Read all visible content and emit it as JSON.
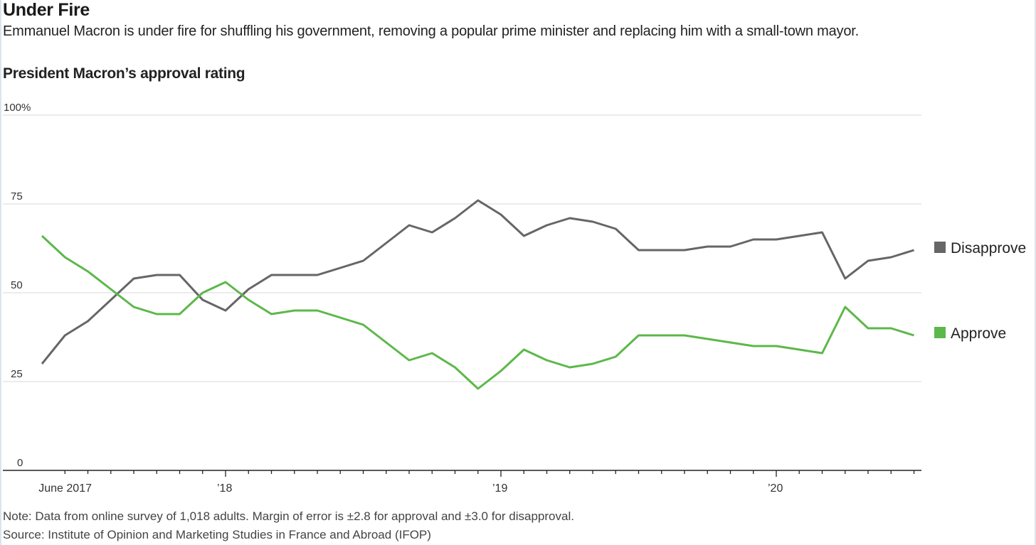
{
  "header": {
    "title": "Under Fire",
    "subtitle": "Emmanuel Macron is under fire for shuffling his government, removing a popular prime minister and replacing him with a small-town mayor.",
    "chart_title": "President Macron’s approval rating"
  },
  "footer": {
    "note": "Note: Data from online survey of 1,018 adults. Margin of error is ±2.8 for approval and ±3.0 for disapproval.",
    "source": "Source: Institute of Opinion and Marketing Studies in France and Abroad (IFOP)"
  },
  "chart_data": {
    "type": "line",
    "title": "President Macron’s approval rating",
    "xlabel": "",
    "ylabel": "",
    "ylim": [
      0,
      100
    ],
    "yticks": [
      {
        "value": 0,
        "label": "0"
      },
      {
        "value": 25,
        "label": "25"
      },
      {
        "value": 50,
        "label": "50"
      },
      {
        "value": 75,
        "label": "75"
      },
      {
        "value": 100,
        "label": "100%"
      }
    ],
    "grid": true,
    "x_start": "2017-05",
    "x_months_index_range": [
      0,
      39
    ],
    "xtick_labels": [
      {
        "month_index": 1,
        "label": "June 2017"
      },
      {
        "month_index": 8,
        "label": "’18"
      },
      {
        "month_index": 20,
        "label": "’19"
      },
      {
        "month_index": 32,
        "label": "’20"
      }
    ],
    "minor_tick_month_indices": [
      1,
      2,
      3,
      4,
      5,
      6,
      7,
      8,
      9,
      10,
      11,
      12,
      13,
      14,
      15,
      16,
      17,
      18,
      19,
      20,
      21,
      22,
      23,
      24,
      25,
      26,
      27,
      28,
      29,
      30,
      31,
      32,
      33,
      34,
      35,
      36,
      37,
      38
    ],
    "x": [
      "2017-05",
      "2017-06",
      "2017-07",
      "2017-08",
      "2017-09",
      "2017-10",
      "2017-11",
      "2017-12",
      "2018-01",
      "2018-02",
      "2018-03",
      "2018-04",
      "2018-05",
      "2018-06",
      "2018-07",
      "2018-08",
      "2018-09",
      "2018-10",
      "2018-11",
      "2018-12",
      "2019-01",
      "2019-02",
      "2019-03",
      "2019-04",
      "2019-05",
      "2019-06",
      "2019-07",
      "2019-08",
      "2019-09",
      "2019-10",
      "2019-11",
      "2019-12",
      "2020-01",
      "2020-02",
      "2020-03",
      "2020-04",
      "2020-05",
      "2020-06",
      "2020-07"
    ],
    "series": [
      {
        "name": "Disapprove",
        "color": "#666666",
        "values": [
          30,
          38,
          42,
          48,
          54,
          55,
          55,
          48,
          45,
          51,
          55,
          55,
          55,
          57,
          59,
          64,
          69,
          67,
          71,
          76,
          72,
          66,
          69,
          71,
          70,
          68,
          62,
          62,
          62,
          63,
          63,
          65,
          65,
          66,
          67,
          54,
          59,
          60,
          62
        ]
      },
      {
        "name": "Approve",
        "color": "#5cb84a",
        "values": [
          66,
          60,
          56,
          51,
          46,
          44,
          44,
          50,
          53,
          48,
          44,
          45,
          45,
          43,
          41,
          36,
          31,
          33,
          29,
          23,
          28,
          34,
          31,
          29,
          30,
          32,
          38,
          38,
          38,
          37,
          36,
          35,
          35,
          34,
          33,
          46,
          40,
          40,
          38
        ]
      }
    ],
    "legend": {
      "placement": "right",
      "entries": [
        {
          "label": "Disapprove",
          "color": "#666666"
        },
        {
          "label": "Approve",
          "color": "#5cb84a"
        }
      ]
    }
  }
}
